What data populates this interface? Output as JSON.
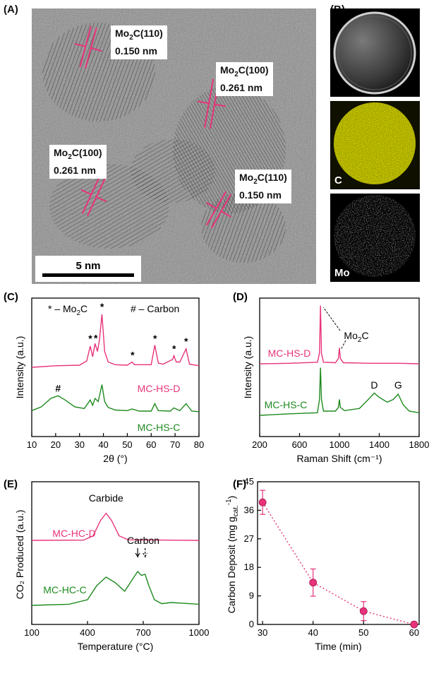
{
  "panels": {
    "A": {
      "letter": "(A)",
      "annotations": [
        {
          "name": "Mo2C(110)",
          "base": "Mo",
          "sub": "2",
          "rest": "C(110)",
          "spacing": "0.150 nm"
        },
        {
          "name": "Mo2C(100)",
          "base": "Mo",
          "sub": "2",
          "rest": "C(100)",
          "spacing": "0.261 nm"
        },
        {
          "name": "Mo2C(100)",
          "base": "Mo",
          "sub": "2",
          "rest": "C(100)",
          "spacing": "0.261 nm"
        },
        {
          "name": "Mo2C(110)",
          "base": "Mo",
          "sub": "2",
          "rest": "C(110)",
          "spacing": "0.150 nm"
        }
      ],
      "scale_bar": "5 nm",
      "marker_color": "#e8337a"
    },
    "B": {
      "letter": "(B)",
      "maps": [
        {
          "label": "",
          "color": "#ffffff"
        },
        {
          "label": "C",
          "color": "#e0e000"
        },
        {
          "label": "Mo",
          "color": "#ffffff"
        }
      ]
    }
  },
  "chart_data": [
    {
      "panel": "(C)",
      "type": "line",
      "xlabel": "2θ (°)",
      "ylabel": "Intensity (a.u.)",
      "xlim": [
        10,
        80
      ],
      "xticks": [
        10,
        20,
        30,
        40,
        50,
        60,
        70,
        80
      ],
      "legend": {
        "star": "* – Mo",
        "star_sub": "2",
        "star_rest": "C",
        "hash": "# – Carbon"
      },
      "series": [
        {
          "name": "MC-HS-D",
          "color": "#e8337a",
          "x": [
            10,
            20,
            30,
            33,
            34.5,
            35.5,
            36.5,
            37.5,
            38.3,
            39.4,
            40.5,
            42,
            45,
            50,
            52,
            53,
            55,
            60,
            61.5,
            63,
            65,
            69,
            69.5,
            70.5,
            72,
            74.6,
            76,
            80
          ],
          "y": [
            0,
            0.3,
            0.4,
            1.2,
            4,
            2,
            4.5,
            3,
            5,
            10,
            3,
            1,
            0.5,
            0.4,
            1,
            0.5,
            0.5,
            0.5,
            4.2,
            0.8,
            0.6,
            1.5,
            2.2,
            1,
            1,
            3.5,
            0.6,
            0.3
          ]
        },
        {
          "name": "MC-HS-C",
          "color": "#1e8a1e",
          "x": [
            10,
            14,
            18,
            21,
            24,
            28,
            32,
            34.5,
            35.5,
            36.5,
            37.8,
            38.5,
            39.4,
            40.5,
            42,
            45,
            50,
            52,
            55,
            60,
            61.5,
            63,
            68,
            69.5,
            72,
            74.6,
            77,
            80
          ],
          "y": [
            0.5,
            1.2,
            2.8,
            3.3,
            2.5,
            1.2,
            0.9,
            2.5,
            1.5,
            2.8,
            2.2,
            3.6,
            5.4,
            2.2,
            1.1,
            0.6,
            0.5,
            0.8,
            0.4,
            0.4,
            1.8,
            0.5,
            0.4,
            1,
            0.5,
            1.8,
            0.4,
            0.3
          ]
        }
      ],
      "peak_marks": [
        {
          "x": 34.5,
          "s": "*"
        },
        {
          "x": 36.8,
          "s": "*"
        },
        {
          "x": 39.4,
          "s": "*"
        },
        {
          "x": 52.2,
          "s": "*"
        },
        {
          "x": 61.6,
          "s": "*"
        },
        {
          "x": 69.6,
          "s": "*"
        },
        {
          "x": 74.6,
          "s": "*"
        },
        {
          "x": 21,
          "s": "#"
        }
      ]
    },
    {
      "panel": "(D)",
      "type": "line",
      "xlabel": "Raman Shift (cm⁻¹)",
      "ylabel": "Intensity (a.u.)",
      "xlim": [
        200,
        1800
      ],
      "xticks": [
        200,
        600,
        1000,
        1400,
        1800
      ],
      "annotation": {
        "base": "Mo",
        "sub": "2",
        "rest": "C"
      },
      "band_labels": [
        {
          "x": 1350,
          "text": "D"
        },
        {
          "x": 1590,
          "text": "G"
        }
      ],
      "series": [
        {
          "name": "MC-HS-D",
          "color": "#e8337a",
          "x": [
            200,
            500,
            780,
            800,
            810,
            820,
            840,
            960,
            990,
            1000,
            1010,
            1040,
            1300,
            1600,
            1800
          ],
          "y": [
            0,
            0.1,
            0.3,
            2,
            11,
            2,
            0.3,
            0.2,
            1,
            3,
            1,
            0.2,
            0.1,
            0.1,
            0
          ]
        },
        {
          "name": "MC-HS-C",
          "color": "#1e8a1e",
          "x": [
            200,
            500,
            780,
            800,
            810,
            820,
            840,
            960,
            990,
            1000,
            1010,
            1050,
            1200,
            1300,
            1350,
            1400,
            1480,
            1540,
            1590,
            1640,
            1700,
            1800
          ],
          "y": [
            0,
            0.3,
            0.5,
            3,
            9,
            3,
            0.8,
            0.8,
            1.5,
            3,
            1.5,
            0.9,
            1.3,
            3.2,
            4.2,
            3.4,
            2.5,
            3,
            4,
            2,
            0.8,
            0.5
          ]
        }
      ]
    },
    {
      "panel": "(E)",
      "type": "line",
      "xlabel": "Temperature (°C)",
      "ylabel": "CO₂ Produced (a.u.)",
      "xlim": [
        100,
        1000
      ],
      "xticks": [
        100,
        400,
        700,
        1000
      ],
      "annotations": [
        {
          "text": "Carbide"
        },
        {
          "text": "Carbon"
        }
      ],
      "series": [
        {
          "name": "MC-HC-D",
          "color": "#e8337a",
          "x": [
            100,
            380,
            430,
            470,
            500,
            530,
            570,
            620,
            800,
            1000
          ],
          "y": [
            0,
            0.05,
            0.8,
            3.5,
            4.8,
            3.5,
            0.8,
            0.1,
            0.05,
            0
          ]
        },
        {
          "name": "MC-HC-C",
          "color": "#1e8a1e",
          "x": [
            100,
            300,
            400,
            450,
            500,
            550,
            600,
            640,
            670,
            690,
            710,
            730,
            760,
            800,
            850,
            1000
          ],
          "y": [
            0,
            0.2,
            1,
            3.5,
            5,
            4,
            2.5,
            4.5,
            6,
            5.3,
            5.5,
            3.5,
            1,
            0.3,
            0.5,
            0.2
          ]
        }
      ]
    },
    {
      "panel": "(F)",
      "type": "scatter",
      "xlabel": "Time (min)",
      "ylabel": "Carbon Deposit (mg g",
      "ylabel_sub": "cat.",
      "ylabel_sup": "-1",
      "ylabel_close": ")",
      "xlim": [
        29,
        61
      ],
      "ylim": [
        0,
        45
      ],
      "xticks": [
        30,
        40,
        50,
        60
      ],
      "yticks": [
        0,
        9,
        18,
        27,
        36,
        45
      ],
      "color": "#e8337a",
      "points": [
        {
          "x": 30,
          "y": 38.5,
          "err": 3.8
        },
        {
          "x": 40,
          "y": 13.2,
          "err": 4.3
        },
        {
          "x": 50,
          "y": 4.2,
          "err": 3.0
        },
        {
          "x": 60,
          "y": 0,
          "err": 0
        }
      ]
    }
  ]
}
